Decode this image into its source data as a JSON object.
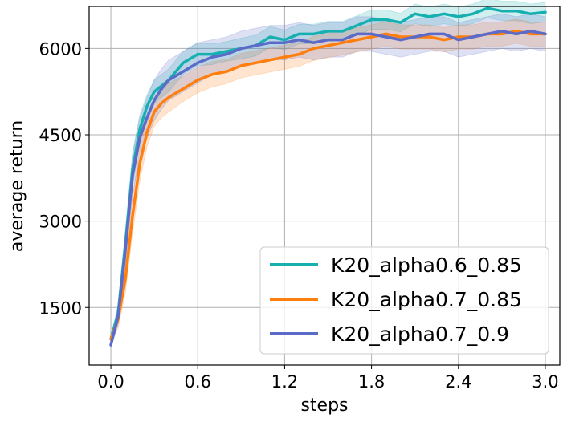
{
  "chart_data": {
    "type": "line",
    "title": "",
    "xlabel": "steps",
    "ylabel": "average return",
    "xlim": [
      -0.15,
      3.1
    ],
    "ylim": [
      500,
      6730
    ],
    "xticks": [
      0.0,
      0.6,
      1.2,
      1.8,
      2.4,
      3.0
    ],
    "xtick_labels": [
      "0.0",
      "0.6",
      "1.2",
      "1.8",
      "2.4",
      "3.0"
    ],
    "yticks": [
      1500,
      3000,
      4500,
      6000
    ],
    "ytick_labels": [
      "1500",
      "3000",
      "4500",
      "6000"
    ],
    "grid": true,
    "legend_position": "bottom-right",
    "series": [
      {
        "name": "K20_alpha0.6_0.85",
        "color": "#17b0b0",
        "x": [
          0.0,
          0.05,
          0.1,
          0.15,
          0.2,
          0.25,
          0.3,
          0.35,
          0.4,
          0.5,
          0.6,
          0.7,
          0.8,
          0.9,
          1.0,
          1.1,
          1.2,
          1.3,
          1.4,
          1.5,
          1.6,
          1.7,
          1.8,
          1.9,
          2.0,
          2.1,
          2.2,
          2.3,
          2.4,
          2.5,
          2.6,
          2.7,
          2.8,
          2.9,
          3.0
        ],
        "y": [
          950,
          1400,
          2600,
          3900,
          4600,
          5000,
          5250,
          5350,
          5450,
          5750,
          5900,
          5900,
          5950,
          6000,
          6050,
          6200,
          6150,
          6250,
          6250,
          6300,
          6300,
          6400,
          6500,
          6500,
          6450,
          6600,
          6550,
          6600,
          6550,
          6600,
          6700,
          6650,
          6650,
          6600,
          6630
        ],
        "lower": [
          900,
          1250,
          2350,
          3600,
          4350,
          4800,
          5050,
          5150,
          5250,
          5550,
          5700,
          5720,
          5780,
          5820,
          5870,
          6020,
          5980,
          6080,
          6080,
          6130,
          6130,
          6230,
          6330,
          6330,
          6290,
          6430,
          6380,
          6430,
          6380,
          6430,
          6530,
          6480,
          6480,
          6430,
          6460
        ],
        "upper": [
          1000,
          1550,
          2850,
          4200,
          4850,
          5200,
          5450,
          5550,
          5650,
          5950,
          6100,
          6080,
          6120,
          6180,
          6230,
          6380,
          6320,
          6420,
          6420,
          6470,
          6470,
          6570,
          6670,
          6670,
          6610,
          6770,
          6720,
          6770,
          6720,
          6770,
          6870,
          6820,
          6820,
          6770,
          6800
        ]
      },
      {
        "name": "K20_alpha0.7_0.85",
        "color": "#ff7f0e",
        "x": [
          0.0,
          0.05,
          0.1,
          0.15,
          0.2,
          0.25,
          0.3,
          0.35,
          0.4,
          0.5,
          0.6,
          0.7,
          0.8,
          0.9,
          1.0,
          1.1,
          1.2,
          1.3,
          1.4,
          1.5,
          1.6,
          1.7,
          1.8,
          1.9,
          2.0,
          2.1,
          2.2,
          2.3,
          2.4,
          2.5,
          2.6,
          2.7,
          2.8,
          2.9,
          3.0
        ],
        "y": [
          950,
          1300,
          2000,
          3100,
          4000,
          4550,
          4900,
          5050,
          5150,
          5300,
          5450,
          5550,
          5600,
          5700,
          5750,
          5800,
          5850,
          5900,
          6000,
          6050,
          6100,
          6150,
          6200,
          6250,
          6200,
          6200,
          6200,
          6150,
          6200,
          6200,
          6250,
          6250,
          6300,
          6250,
          6250
        ],
        "lower": [
          900,
          1150,
          1750,
          2800,
          3700,
          4300,
          4650,
          4800,
          4900,
          5080,
          5230,
          5330,
          5390,
          5490,
          5540,
          5590,
          5640,
          5690,
          5790,
          5840,
          5890,
          5940,
          5990,
          6040,
          5990,
          5990,
          5990,
          5940,
          5990,
          5990,
          6040,
          6040,
          6090,
          6040,
          6040
        ],
        "upper": [
          1000,
          1450,
          2250,
          3400,
          4300,
          4800,
          5150,
          5300,
          5400,
          5520,
          5670,
          5770,
          5810,
          5910,
          5960,
          6010,
          6060,
          6110,
          6210,
          6260,
          6310,
          6360,
          6410,
          6460,
          6410,
          6410,
          6410,
          6360,
          6410,
          6410,
          6460,
          6460,
          6510,
          6460,
          6460
        ]
      },
      {
        "name": "K20_alpha0.7_0.9",
        "color": "#5c6bc8",
        "x": [
          0.0,
          0.05,
          0.1,
          0.15,
          0.2,
          0.25,
          0.3,
          0.35,
          0.4,
          0.5,
          0.6,
          0.7,
          0.8,
          0.9,
          1.0,
          1.1,
          1.2,
          1.3,
          1.4,
          1.5,
          1.6,
          1.7,
          1.8,
          1.9,
          2.0,
          2.1,
          2.2,
          2.3,
          2.4,
          2.5,
          2.6,
          2.7,
          2.8,
          2.9,
          3.0
        ],
        "y": [
          850,
          1350,
          2500,
          3800,
          4450,
          4800,
          5100,
          5300,
          5450,
          5600,
          5750,
          5850,
          5900,
          6000,
          6050,
          6100,
          6100,
          6150,
          6100,
          6150,
          6150,
          6250,
          6250,
          6200,
          6150,
          6200,
          6250,
          6250,
          6150,
          6200,
          6250,
          6300,
          6250,
          6300,
          6250
        ],
        "lower": [
          800,
          1200,
          2250,
          3450,
          4100,
          4450,
          4750,
          4950,
          5100,
          5250,
          5400,
          5550,
          5600,
          5700,
          5750,
          5800,
          5800,
          5850,
          5800,
          5850,
          5850,
          5950,
          5950,
          5900,
          5850,
          5900,
          5950,
          5950,
          5850,
          5900,
          5950,
          6000,
          5950,
          6000,
          5950
        ],
        "upper": [
          900,
          1500,
          2750,
          4150,
          4800,
          5150,
          5450,
          5650,
          5800,
          5950,
          6100,
          6150,
          6200,
          6300,
          6350,
          6400,
          6400,
          6450,
          6400,
          6450,
          6450,
          6550,
          6550,
          6500,
          6450,
          6500,
          6550,
          6550,
          6450,
          6500,
          6550,
          6600,
          6550,
          6600,
          6550
        ]
      }
    ]
  }
}
